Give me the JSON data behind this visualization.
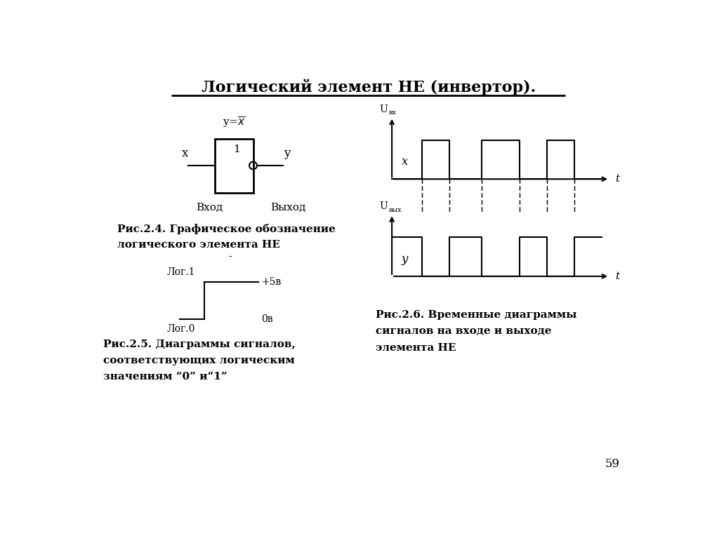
{
  "title": "Логический элемент НЕ (инвертор).",
  "bg_color": "#ffffff",
  "text_color": "#000000",
  "fig24_caption_line1": "Рис.2.4. Графическое обозначение",
  "fig24_caption_line2": "логического элемента НЕ",
  "fig25_caption_line1": "Рис.2.5. Диаграммы сигналов,",
  "fig25_caption_line2": "соответствующих логическим",
  "fig25_caption_line3": "значениям “0” и“1”",
  "fig26_caption_line1": "Рис.2.6. Временные диаграммы",
  "fig26_caption_line2": "сигналов на входе и выходе",
  "fig26_caption_line3": "элемента НЕ",
  "page_number": "59"
}
